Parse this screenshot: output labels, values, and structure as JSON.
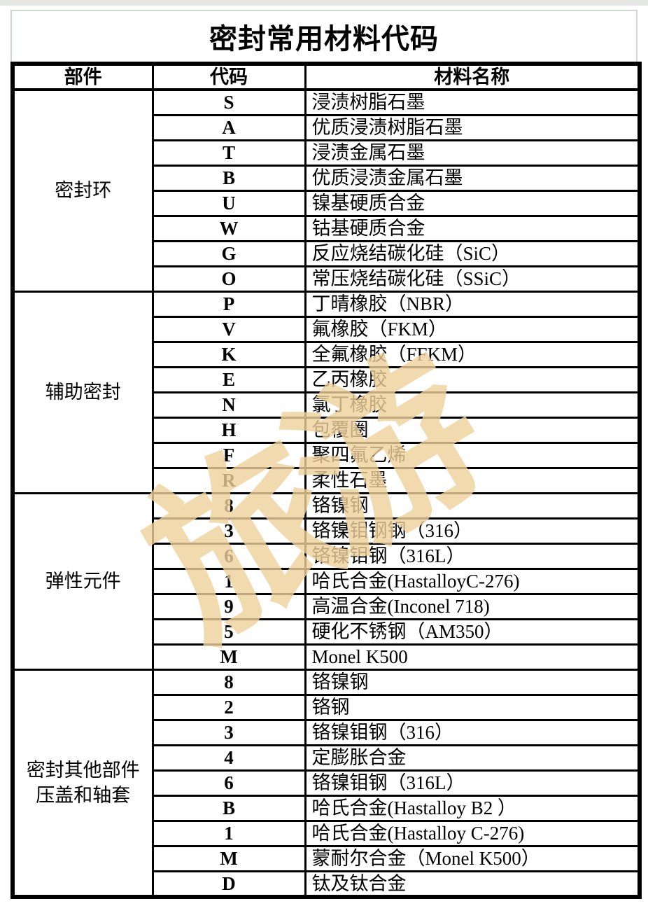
{
  "page": {
    "title": "密封常用材料代码",
    "watermark": "旅游"
  },
  "colors": {
    "page_border_green": "#ccd9cc",
    "table_border_black": "#000000",
    "watermark_tan": "#f0d19c"
  },
  "table": {
    "headers": {
      "part": "部件",
      "code": "代码",
      "material": "材料名称"
    },
    "sections": [
      {
        "part": "密封环",
        "rows": [
          {
            "code": "S",
            "name": "浸渍树脂石墨"
          },
          {
            "code": "A",
            "name": "优质浸渍树脂石墨"
          },
          {
            "code": "T",
            "name": "浸渍金属石墨"
          },
          {
            "code": "B",
            "name": "优质浸渍金属石墨"
          },
          {
            "code": "U",
            "name": "镍基硬质合金"
          },
          {
            "code": "W",
            "name": "钴基硬质合金"
          },
          {
            "code": "G",
            "name": "反应烧结碳化硅（SiC）"
          },
          {
            "code": "O",
            "name": "常压烧结碳化硅（SSiC）"
          }
        ]
      },
      {
        "part": "辅助密封",
        "rows": [
          {
            "code": "P",
            "name": "丁晴橡胶（NBR）"
          },
          {
            "code": "V",
            "name": "氟橡胶（FKM）"
          },
          {
            "code": "K",
            "name": "全氟橡胶（FFKM）"
          },
          {
            "code": "E",
            "name": "乙丙橡胶"
          },
          {
            "code": "N",
            "name": "氯丁橡胶"
          },
          {
            "code": "H",
            "name": "包覆圈"
          },
          {
            "code": "F",
            "name": "聚四氟乙烯"
          },
          {
            "code": "R",
            "name": "柔性石墨"
          }
        ]
      },
      {
        "part": "弹性元件",
        "rows": [
          {
            "code": "8",
            "name": "铬镍钢"
          },
          {
            "code": "3",
            "name": "铬镍钼钢钢（316）"
          },
          {
            "code": "6",
            "name": "铬镍钼钢（316L）"
          },
          {
            "code": "1",
            "name": "哈氏合金(HastalloyC-276)"
          },
          {
            "code": "9",
            "name": "高温合金(Inconel 718)"
          },
          {
            "code": "5",
            "name": "硬化不锈钢（AM350）"
          },
          {
            "code": "M",
            "name": "Monel K500"
          }
        ]
      },
      {
        "part": "密封其他部件\n压盖和轴套",
        "rows": [
          {
            "code": "8",
            "name": "铬镍钢"
          },
          {
            "code": "2",
            "name": "铬钢"
          },
          {
            "code": "3",
            "name": "铬镍钼钢（316）"
          },
          {
            "code": "4",
            "name": "定膨胀合金"
          },
          {
            "code": "6",
            "name": "铬镍钼钢（316L）"
          },
          {
            "code": "B",
            "name": "哈氏合金(Hastalloy B2 ）"
          },
          {
            "code": "1",
            "name": "哈氏合金(Hastalloy C-276)"
          },
          {
            "code": "M",
            "name": "蒙耐尔合金（Monel K500）"
          },
          {
            "code": "D",
            "name": "钛及钛合金"
          }
        ]
      }
    ]
  }
}
